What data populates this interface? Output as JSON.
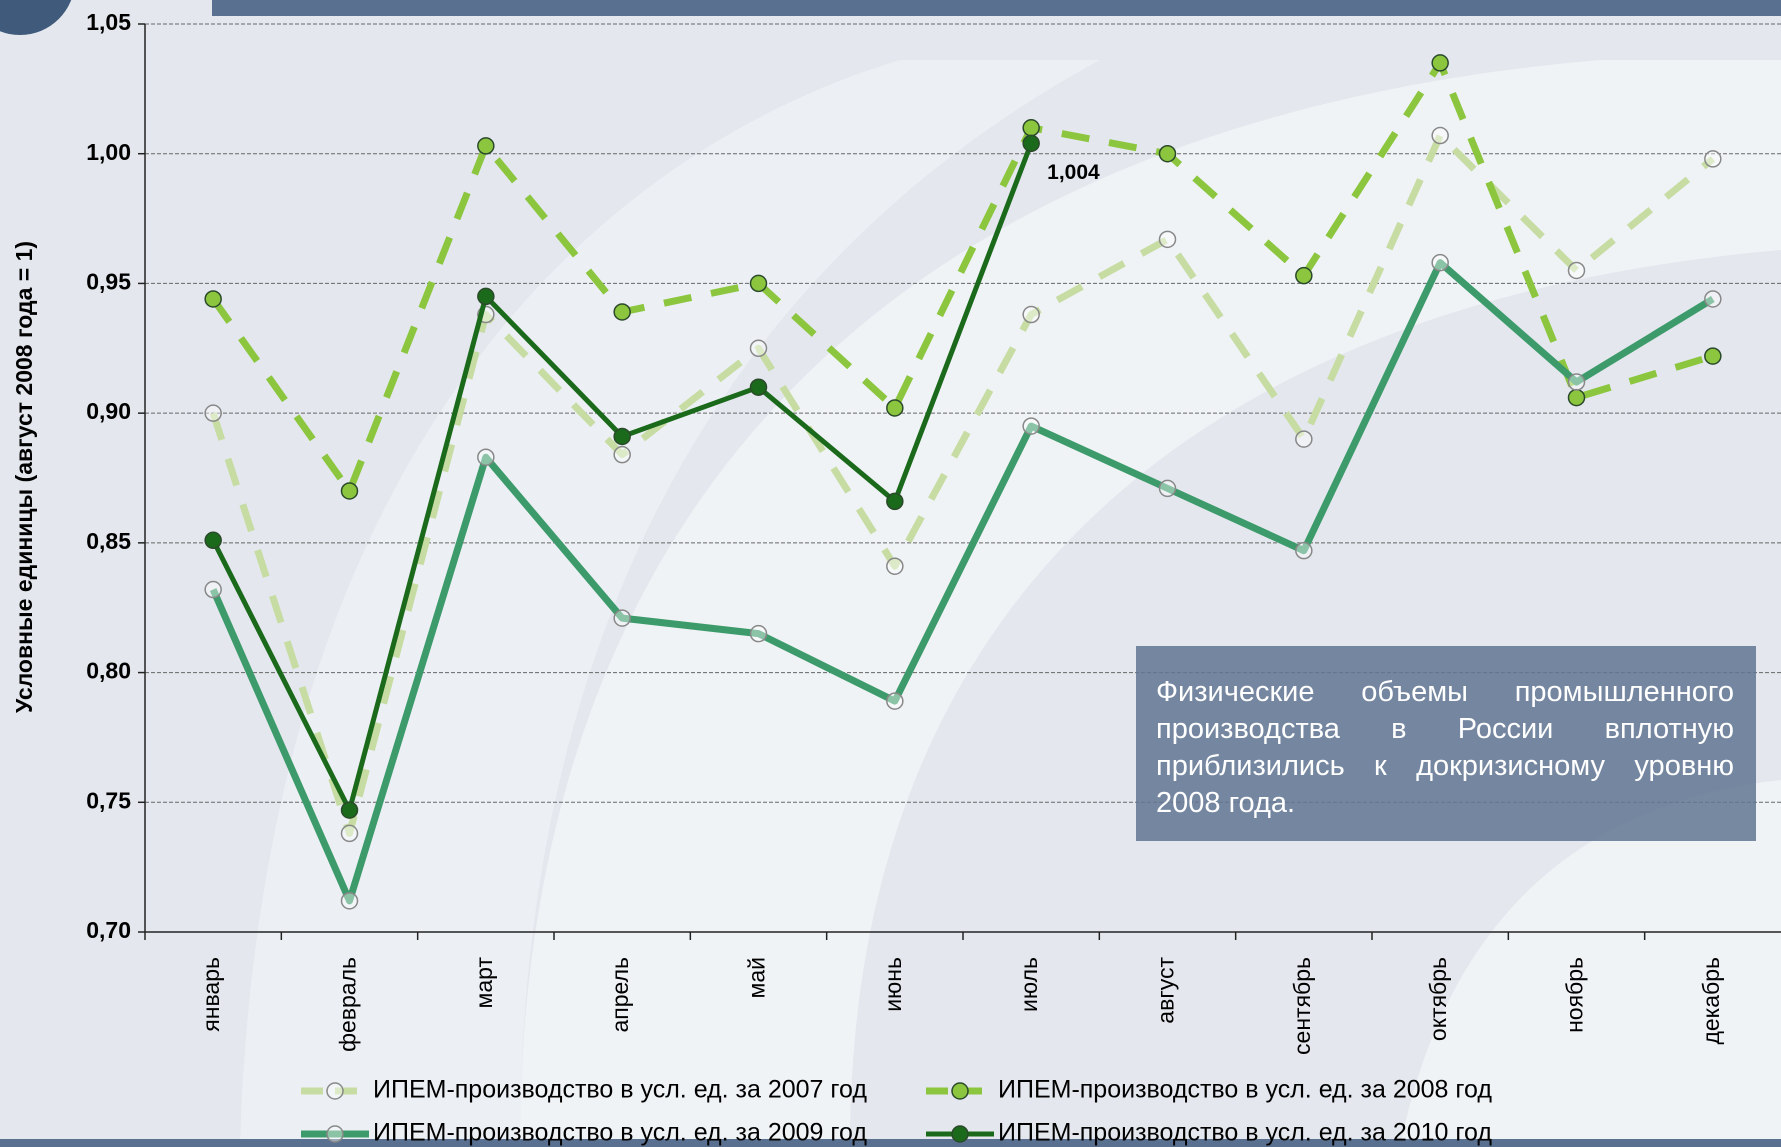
{
  "chart_data": {
    "type": "line",
    "y_label": "Условные единицы (август 2008 года = 1)",
    "categories": [
      "январь",
      "февраль",
      "март",
      "апрель",
      "май",
      "июнь",
      "июль",
      "август",
      "сентябрь",
      "октябрь",
      "ноябрь",
      "декабрь"
    ],
    "series": [
      {
        "name": "ИПЕМ-производство в усл. ед. за 2007 год",
        "color": "#c7dca3",
        "dashed": true,
        "marker": "hollow",
        "values": [
          0.9,
          0.738,
          0.938,
          0.884,
          0.925,
          0.841,
          0.938,
          0.967,
          0.89,
          1.007,
          0.955,
          0.998
        ]
      },
      {
        "name": "ИПЕМ-производство в усл. ед. за 2008 год",
        "color": "#8cc63f",
        "dashed": true,
        "marker": "filled",
        "values": [
          0.944,
          0.87,
          1.003,
          0.939,
          0.95,
          0.902,
          1.01,
          1.0,
          0.953,
          1.035,
          0.906,
          0.922
        ]
      },
      {
        "name": "ИПЕМ-производство в усл. ед. за 2009 год",
        "color": "#3d9b6b",
        "dashed": false,
        "marker": "hollow",
        "values": [
          0.832,
          0.712,
          0.883,
          0.821,
          0.815,
          0.789,
          0.895,
          0.871,
          0.847,
          0.958,
          0.912,
          0.944
        ]
      },
      {
        "name": "ИПЕМ-производство в усл. ед. за 2010 год",
        "color": "#1b6a1b",
        "dashed": false,
        "marker": "filled",
        "values": [
          0.851,
          0.747,
          0.945,
          0.891,
          0.91,
          0.866,
          1.004,
          null,
          null,
          null,
          null,
          null
        ],
        "value_labels": [
          null,
          null,
          null,
          null,
          null,
          null,
          "1,004",
          null,
          null,
          null,
          null,
          null
        ]
      }
    ],
    "ylim": [
      0.7,
      1.05
    ],
    "yticks": [
      {
        "value": 0.7,
        "label": "0,70"
      },
      {
        "value": 0.75,
        "label": "0,75"
      },
      {
        "value": 0.8,
        "label": "0,80"
      },
      {
        "value": 0.85,
        "label": "0,85"
      },
      {
        "value": 0.9,
        "label": "0,90"
      },
      {
        "value": 0.95,
        "label": "0,95"
      },
      {
        "value": 1.0,
        "label": "1,00"
      },
      {
        "value": 1.05,
        "label": "1,05"
      }
    ],
    "grid": true,
    "annotation": "Физические объемы промышленного производства в России вплотную приблизились к докризисному уровню 2008 года."
  }
}
